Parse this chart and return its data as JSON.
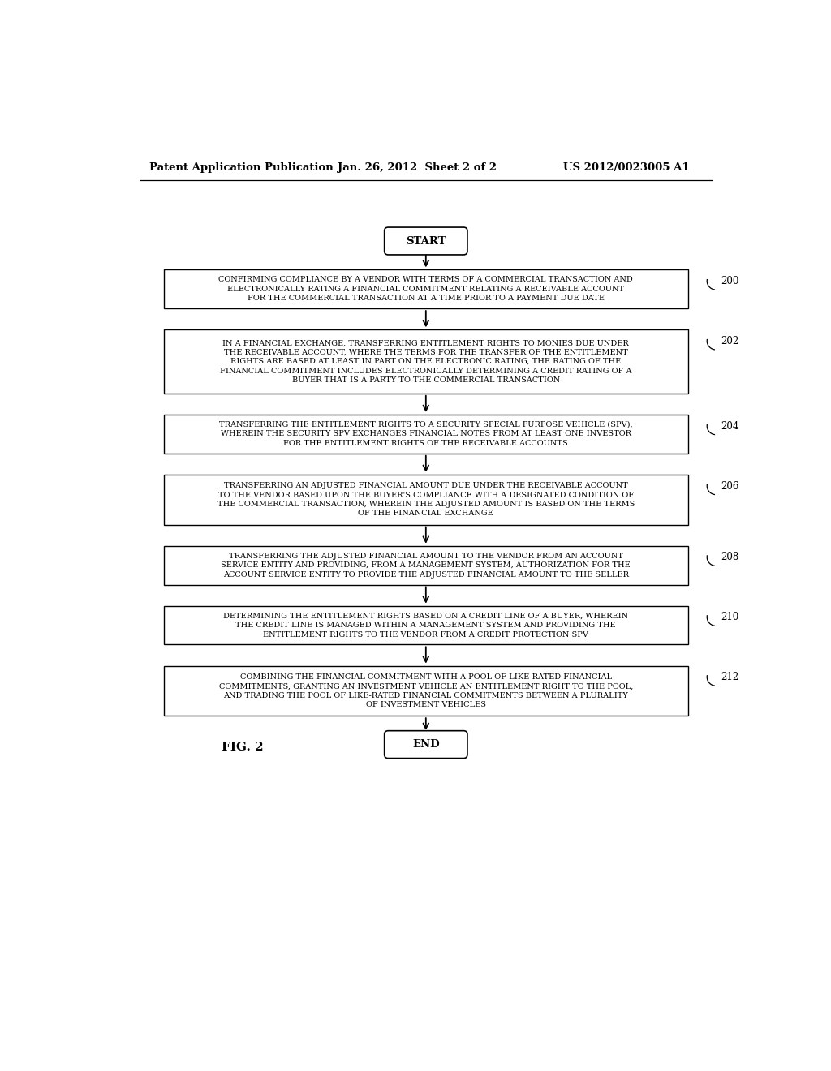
{
  "header_left": "Patent Application Publication",
  "header_center": "Jan. 26, 2012  Sheet 2 of 2",
  "header_right": "US 2012/0023005 A1",
  "fig_label": "FIG. 2",
  "start_label": "START",
  "end_label": "END",
  "boxes": [
    {
      "label": "200",
      "text": "CONFIRMING COMPLIANCE BY A VENDOR WITH TERMS OF A COMMERCIAL TRANSACTION AND\nELECTRONICALLY RATING A FINANCIAL COMMITMENT RELATING A RECEIVABLE ACCOUNT\nFOR THE COMMERCIAL TRANSACTION AT A TIME PRIOR TO A PAYMENT DUE DATE"
    },
    {
      "label": "202",
      "text": "IN A FINANCIAL EXCHANGE, TRANSFERRING ENTITLEMENT RIGHTS TO MONIES DUE UNDER\nTHE RECEIVABLE ACCOUNT, WHERE THE TERMS FOR THE TRANSFER OF THE ENTITLEMENT\nRIGHTS ARE BASED AT LEAST IN PART ON THE ELECTRONIC RATING, THE RATING OF THE\nFINANCIAL COMMITMENT INCLUDES ELECTRONICALLY DETERMINING A CREDIT RATING OF A\nBUYER THAT IS A PARTY TO THE COMMERCIAL TRANSACTION"
    },
    {
      "label": "204",
      "text": "TRANSFERRING THE ENTITLEMENT RIGHTS TO A SECURITY SPECIAL PURPOSE VEHICLE (SPV),\nWHEREIN THE SECURITY SPV EXCHANGES FINANCIAL NOTES FROM AT LEAST ONE INVESTOR\nFOR THE ENTITLEMENT RIGHTS OF THE RECEIVABLE ACCOUNTS"
    },
    {
      "label": "206",
      "text": "TRANSFERRING AN ADJUSTED FINANCIAL AMOUNT DUE UNDER THE RECEIVABLE ACCOUNT\nTO THE VENDOR BASED UPON THE BUYER'S COMPLIANCE WITH A DESIGNATED CONDITION OF\nTHE COMMERCIAL TRANSACTION, WHEREIN THE ADJUSTED AMOUNT IS BASED ON THE TERMS\nOF THE FINANCIAL EXCHANGE"
    },
    {
      "label": "208",
      "text": "TRANSFERRING THE ADJUSTED FINANCIAL AMOUNT TO THE VENDOR FROM AN ACCOUNT\nSERVICE ENTITY AND PROVIDING, FROM A MANAGEMENT SYSTEM, AUTHORIZATION FOR THE\nACCOUNT SERVICE ENTITY TO PROVIDE THE ADJUSTED FINANCIAL AMOUNT TO THE SELLER"
    },
    {
      "label": "210",
      "text": "DETERMINING THE ENTITLEMENT RIGHTS BASED ON A CREDIT LINE OF A BUYER, WHEREIN\nTHE CREDIT LINE IS MANAGED WITHIN A MANAGEMENT SYSTEM AND PROVIDING THE\nENTITLEMENT RIGHTS TO THE VENDOR FROM A CREDIT PROTECTION SPV"
    },
    {
      "label": "212",
      "text": "COMBINING THE FINANCIAL COMMITMENT WITH A POOL OF LIKE-RATED FINANCIAL\nCOMMITMENTS, GRANTING AN INVESTMENT VEHICLE AN ENTITLEMENT RIGHT TO THE POOL,\nAND TRADING THE POOL OF LIKE-RATED FINANCIAL COMMITMENTS BETWEEN A PLURALITY\nOF INVESTMENT VEHICLES"
    }
  ],
  "bg_color": "#ffffff",
  "box_edge_color": "#000000",
  "text_color": "#000000",
  "arrow_color": "#000000",
  "font_size_box": 7.0,
  "font_size_header": 9.5,
  "font_size_label": 8.5,
  "font_size_terminal": 9.5
}
